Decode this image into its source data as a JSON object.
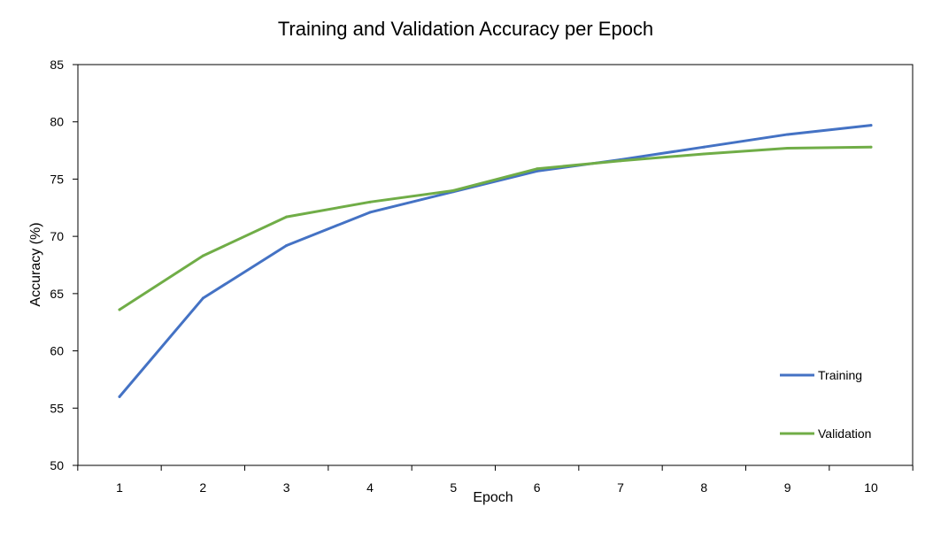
{
  "chart_data": {
    "type": "line",
    "title": "Training and Validation Accuracy per Epoch",
    "xlabel": "Epoch",
    "ylabel": "Accuracy (%)",
    "x": [
      1,
      2,
      3,
      4,
      5,
      6,
      7,
      8,
      9,
      10
    ],
    "ylim": [
      50,
      85
    ],
    "yticks": [
      50,
      55,
      60,
      65,
      70,
      75,
      80,
      85
    ],
    "grid": false,
    "legend_position": "bottom-right",
    "series": [
      {
        "name": "Training",
        "color": "#4472c4",
        "values": [
          56.0,
          64.6,
          69.2,
          72.1,
          73.9,
          75.7,
          76.7,
          77.8,
          78.9,
          79.7
        ]
      },
      {
        "name": "Validation",
        "color": "#70ad47",
        "values": [
          63.6,
          68.3,
          71.7,
          73.0,
          74.0,
          75.9,
          76.6,
          77.2,
          77.7,
          77.8
        ]
      }
    ]
  }
}
